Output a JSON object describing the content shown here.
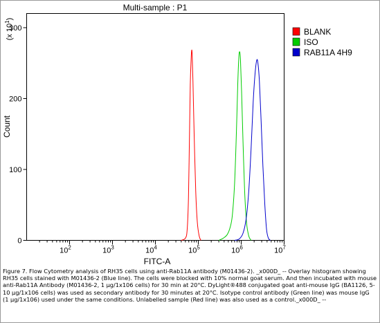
{
  "chart_data": {
    "type": "line",
    "title": "Multi-sample : P1",
    "xlabel": "FITC-A",
    "ylabel": "Count",
    "y_multiplier_label": "(x 10",
    "y_multiplier_exponent": "1",
    "y_multiplier_close": ")",
    "x_scale": "log",
    "xlim": [
      10,
      10000000
    ],
    "ylim": [
      0,
      320
    ],
    "x_ticks": [
      {
        "value": 100,
        "base": "10",
        "exp": "2"
      },
      {
        "value": 1000,
        "base": "10",
        "exp": "3"
      },
      {
        "value": 10000,
        "base": "10",
        "exp": "4"
      },
      {
        "value": 100000,
        "base": "10",
        "exp": "5"
      },
      {
        "value": 1000000,
        "base": "10",
        "exp": "6"
      },
      {
        "value": 10000000,
        "base": "10",
        "exp": "7"
      }
    ],
    "y_ticks": [
      {
        "value": 0,
        "label": "0"
      },
      {
        "value": 100,
        "label": "100"
      },
      {
        "value": 200,
        "label": "200"
      },
      {
        "value": 300,
        "label": "300"
      }
    ],
    "grid": false,
    "legend_position": "right",
    "series": [
      {
        "name": "BLANK",
        "color": "#ff0000",
        "points": [
          [
            40000,
            0
          ],
          [
            50000,
            3
          ],
          [
            55000,
            15
          ],
          [
            59000,
            60
          ],
          [
            62000,
            140
          ],
          [
            65000,
            220
          ],
          [
            68000,
            255
          ],
          [
            70000,
            268
          ],
          [
            72000,
            262
          ],
          [
            75000,
            225
          ],
          [
            80000,
            150
          ],
          [
            87000,
            70
          ],
          [
            95000,
            25
          ],
          [
            105000,
            6
          ],
          [
            115000,
            0
          ]
        ]
      },
      {
        "name": "ISO",
        "color": "#00cc00",
        "points": [
          [
            300000,
            0
          ],
          [
            380000,
            3
          ],
          [
            470000,
            8
          ],
          [
            550000,
            18
          ],
          [
            620000,
            35
          ],
          [
            700000,
            80
          ],
          [
            770000,
            150
          ],
          [
            830000,
            220
          ],
          [
            880000,
            258
          ],
          [
            920000,
            266
          ],
          [
            960000,
            255
          ],
          [
            1020000,
            210
          ],
          [
            1100000,
            140
          ],
          [
            1200000,
            70
          ],
          [
            1330000,
            25
          ],
          [
            1500000,
            6
          ],
          [
            1700000,
            0
          ]
        ]
      },
      {
        "name": "RAB11A 4H9",
        "color": "#0000cc",
        "points": [
          [
            700000,
            0
          ],
          [
            900000,
            2
          ],
          [
            1100000,
            10
          ],
          [
            1300000,
            30
          ],
          [
            1500000,
            70
          ],
          [
            1700000,
            130
          ],
          [
            1900000,
            195
          ],
          [
            2100000,
            235
          ],
          [
            2300000,
            254
          ],
          [
            2450000,
            250
          ],
          [
            2650000,
            225
          ],
          [
            2900000,
            170
          ],
          [
            3200000,
            105
          ],
          [
            3550000,
            50
          ],
          [
            3900000,
            15
          ],
          [
            4300000,
            3
          ],
          [
            4800000,
            0
          ]
        ]
      }
    ]
  },
  "caption": "Figure 7. Flow Cytometry analysis of RH35 cells using anti-Rab11A antibody (M01436-2). _x000D_ -- Overlay histogram showing RH35 cells stained with M01436-2 (Blue line). The cells were blocked with 10% normal goat serum. And then incubated with mouse anti-Rab11A Antibody (M01436-2, 1 μg/1x106 cells) for 30 min at 20°C. DyLight®488 conjugated goat anti-mouse IgG (BA1126, 5-10 μg/1x106 cells) was used as secondary antibody for 30 minutes at 20°C. Isotype control antibody (Green line) was mouse IgG (1 μg/1x106) used under the same conditions. Unlabelled sample (Red line) was also used as a control._x000D_ --"
}
